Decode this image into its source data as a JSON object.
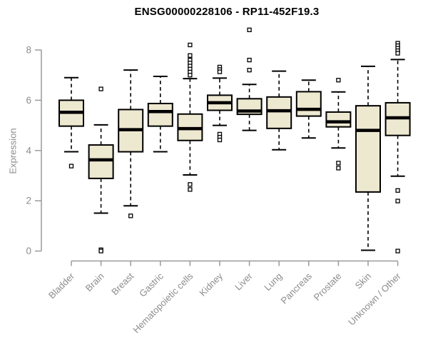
{
  "chart_data": {
    "type": "box",
    "title": "ENSG00000228106 - RP11-452F19.3",
    "ylabel": "Expression",
    "xlabel": "",
    "y_ticks": [
      0,
      2,
      4,
      6,
      8
    ],
    "ylim": [
      0,
      8.9
    ],
    "grid": false,
    "legend": "none",
    "colors": {
      "box_fill": "#ede8d0",
      "box_stroke": "#000000",
      "axis": "#9a9a9a",
      "tick_text": "#8c8c8c",
      "title_text": "#000000",
      "outlier_fill": "#ffffff"
    },
    "categories": [
      "Bladder",
      "Brain",
      "Breast",
      "Gastric",
      "Hematopoietic cells",
      "Kidney",
      "Liver",
      "Lung",
      "Pancreas",
      "Prostate",
      "Skin",
      "Unknown / Other"
    ],
    "series": [
      {
        "name": "Bladder",
        "whisker_low": 3.95,
        "q1": 4.97,
        "median": 5.52,
        "q3": 6.0,
        "whisker_high": 6.9,
        "outliers": [
          3.38
        ]
      },
      {
        "name": "Brain",
        "whisker_low": 1.51,
        "q1": 2.89,
        "median": 3.63,
        "q3": 4.22,
        "whisker_high": 5.02,
        "outliers": [
          6.45,
          0.05,
          0.0
        ]
      },
      {
        "name": "Breast",
        "whisker_low": 1.8,
        "q1": 3.95,
        "median": 4.83,
        "q3": 5.63,
        "whisker_high": 7.2,
        "outliers": [
          1.4
        ]
      },
      {
        "name": "Gastric",
        "whisker_low": 3.95,
        "q1": 4.97,
        "median": 5.55,
        "q3": 5.87,
        "whisker_high": 6.95,
        "outliers": []
      },
      {
        "name": "Hematopoietic cells",
        "whisker_low": 3.03,
        "q1": 4.4,
        "median": 4.87,
        "q3": 5.45,
        "whisker_high": 6.86,
        "outliers": [
          8.2,
          7.78,
          7.6,
          7.48,
          7.36,
          7.24,
          7.12,
          7.0,
          2.65,
          2.45
        ]
      },
      {
        "name": "Kidney",
        "whisker_low": 5.0,
        "q1": 5.6,
        "median": 5.9,
        "q3": 6.2,
        "whisker_high": 6.88,
        "outliers": [
          7.32,
          7.22,
          7.13,
          4.65,
          4.53,
          4.42
        ]
      },
      {
        "name": "Liver",
        "whisker_low": 4.8,
        "q1": 5.44,
        "median": 5.57,
        "q3": 6.06,
        "whisker_high": 6.63,
        "outliers": [
          8.8,
          7.6,
          7.2
        ]
      },
      {
        "name": "Lung",
        "whisker_low": 4.03,
        "q1": 4.88,
        "median": 5.58,
        "q3": 6.13,
        "whisker_high": 7.16,
        "outliers": []
      },
      {
        "name": "Pancreas",
        "whisker_low": 4.5,
        "q1": 5.37,
        "median": 5.64,
        "q3": 6.34,
        "whisker_high": 6.8,
        "outliers": []
      },
      {
        "name": "Prostate",
        "whisker_low": 4.1,
        "q1": 4.94,
        "median": 5.14,
        "q3": 5.53,
        "whisker_high": 6.33,
        "outliers": [
          6.8,
          3.5,
          3.3
        ]
      },
      {
        "name": "Skin",
        "whisker_low": 0.03,
        "q1": 2.35,
        "median": 4.8,
        "q3": 5.78,
        "whisker_high": 7.35,
        "outliers": []
      },
      {
        "name": "Unknown / Other",
        "whisker_low": 2.98,
        "q1": 4.6,
        "median": 5.3,
        "q3": 5.9,
        "whisker_high": 7.62,
        "outliers": [
          8.27,
          8.17,
          8.07,
          7.97,
          7.87,
          2.41,
          1.99,
          0.0
        ]
      }
    ]
  }
}
